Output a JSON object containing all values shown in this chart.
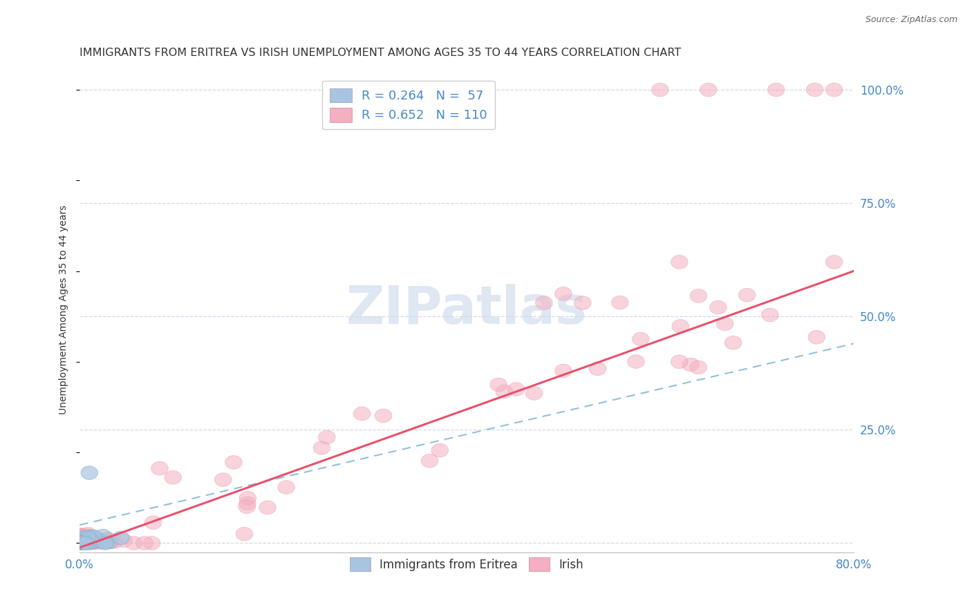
{
  "title": "IMMIGRANTS FROM ERITREA VS IRISH UNEMPLOYMENT AMONG AGES 35 TO 44 YEARS CORRELATION CHART",
  "source": "Source: ZipAtlas.com",
  "ylabel": "Unemployment Among Ages 35 to 44 years",
  "xmin": 0.0,
  "xmax": 0.8,
  "ymin": -0.02,
  "ymax": 1.05,
  "ytick_positions": [
    0.0,
    0.25,
    0.5,
    0.75,
    1.0
  ],
  "ytick_labels_right": [
    "",
    "25.0%",
    "50.0%",
    "75.0%",
    "100.0%"
  ],
  "scatter_blue_color": "#a8c4e0",
  "scatter_pink_color": "#f4afc0",
  "scatter_blue_edge": "#7aaac8",
  "scatter_pink_edge": "#e890a8",
  "line_blue_color": "#90c0d8",
  "line_pink_color": "#e8506a",
  "grid_color": "#d0d8e8",
  "watermark": "ZIPatlas",
  "watermark_color": "#c8d8ea",
  "axis_label_color": "#4488cc",
  "title_color": "#333333",
  "title_fontsize": 11.5,
  "source_fontsize": 9,
  "ylabel_fontsize": 10,
  "legend_top_labels": [
    "R = 0.264   N =  57",
    "R = 0.652   N = 110"
  ],
  "legend_top_label_colors": [
    "#4488cc",
    "#4488cc"
  ],
  "legend_bottom_labels": [
    "Immigrants from Eritrea",
    "Irish"
  ],
  "blue_line": {
    "x0": 0.0,
    "x1": 0.8,
    "y0": 0.04,
    "y1": 0.44
  },
  "pink_line": {
    "x0": 0.0,
    "x1": 0.8,
    "y0": -0.01,
    "y1": 0.6
  },
  "N_blue": 57,
  "N_pink": 110,
  "blue_seed": 12,
  "pink_seed": 7
}
